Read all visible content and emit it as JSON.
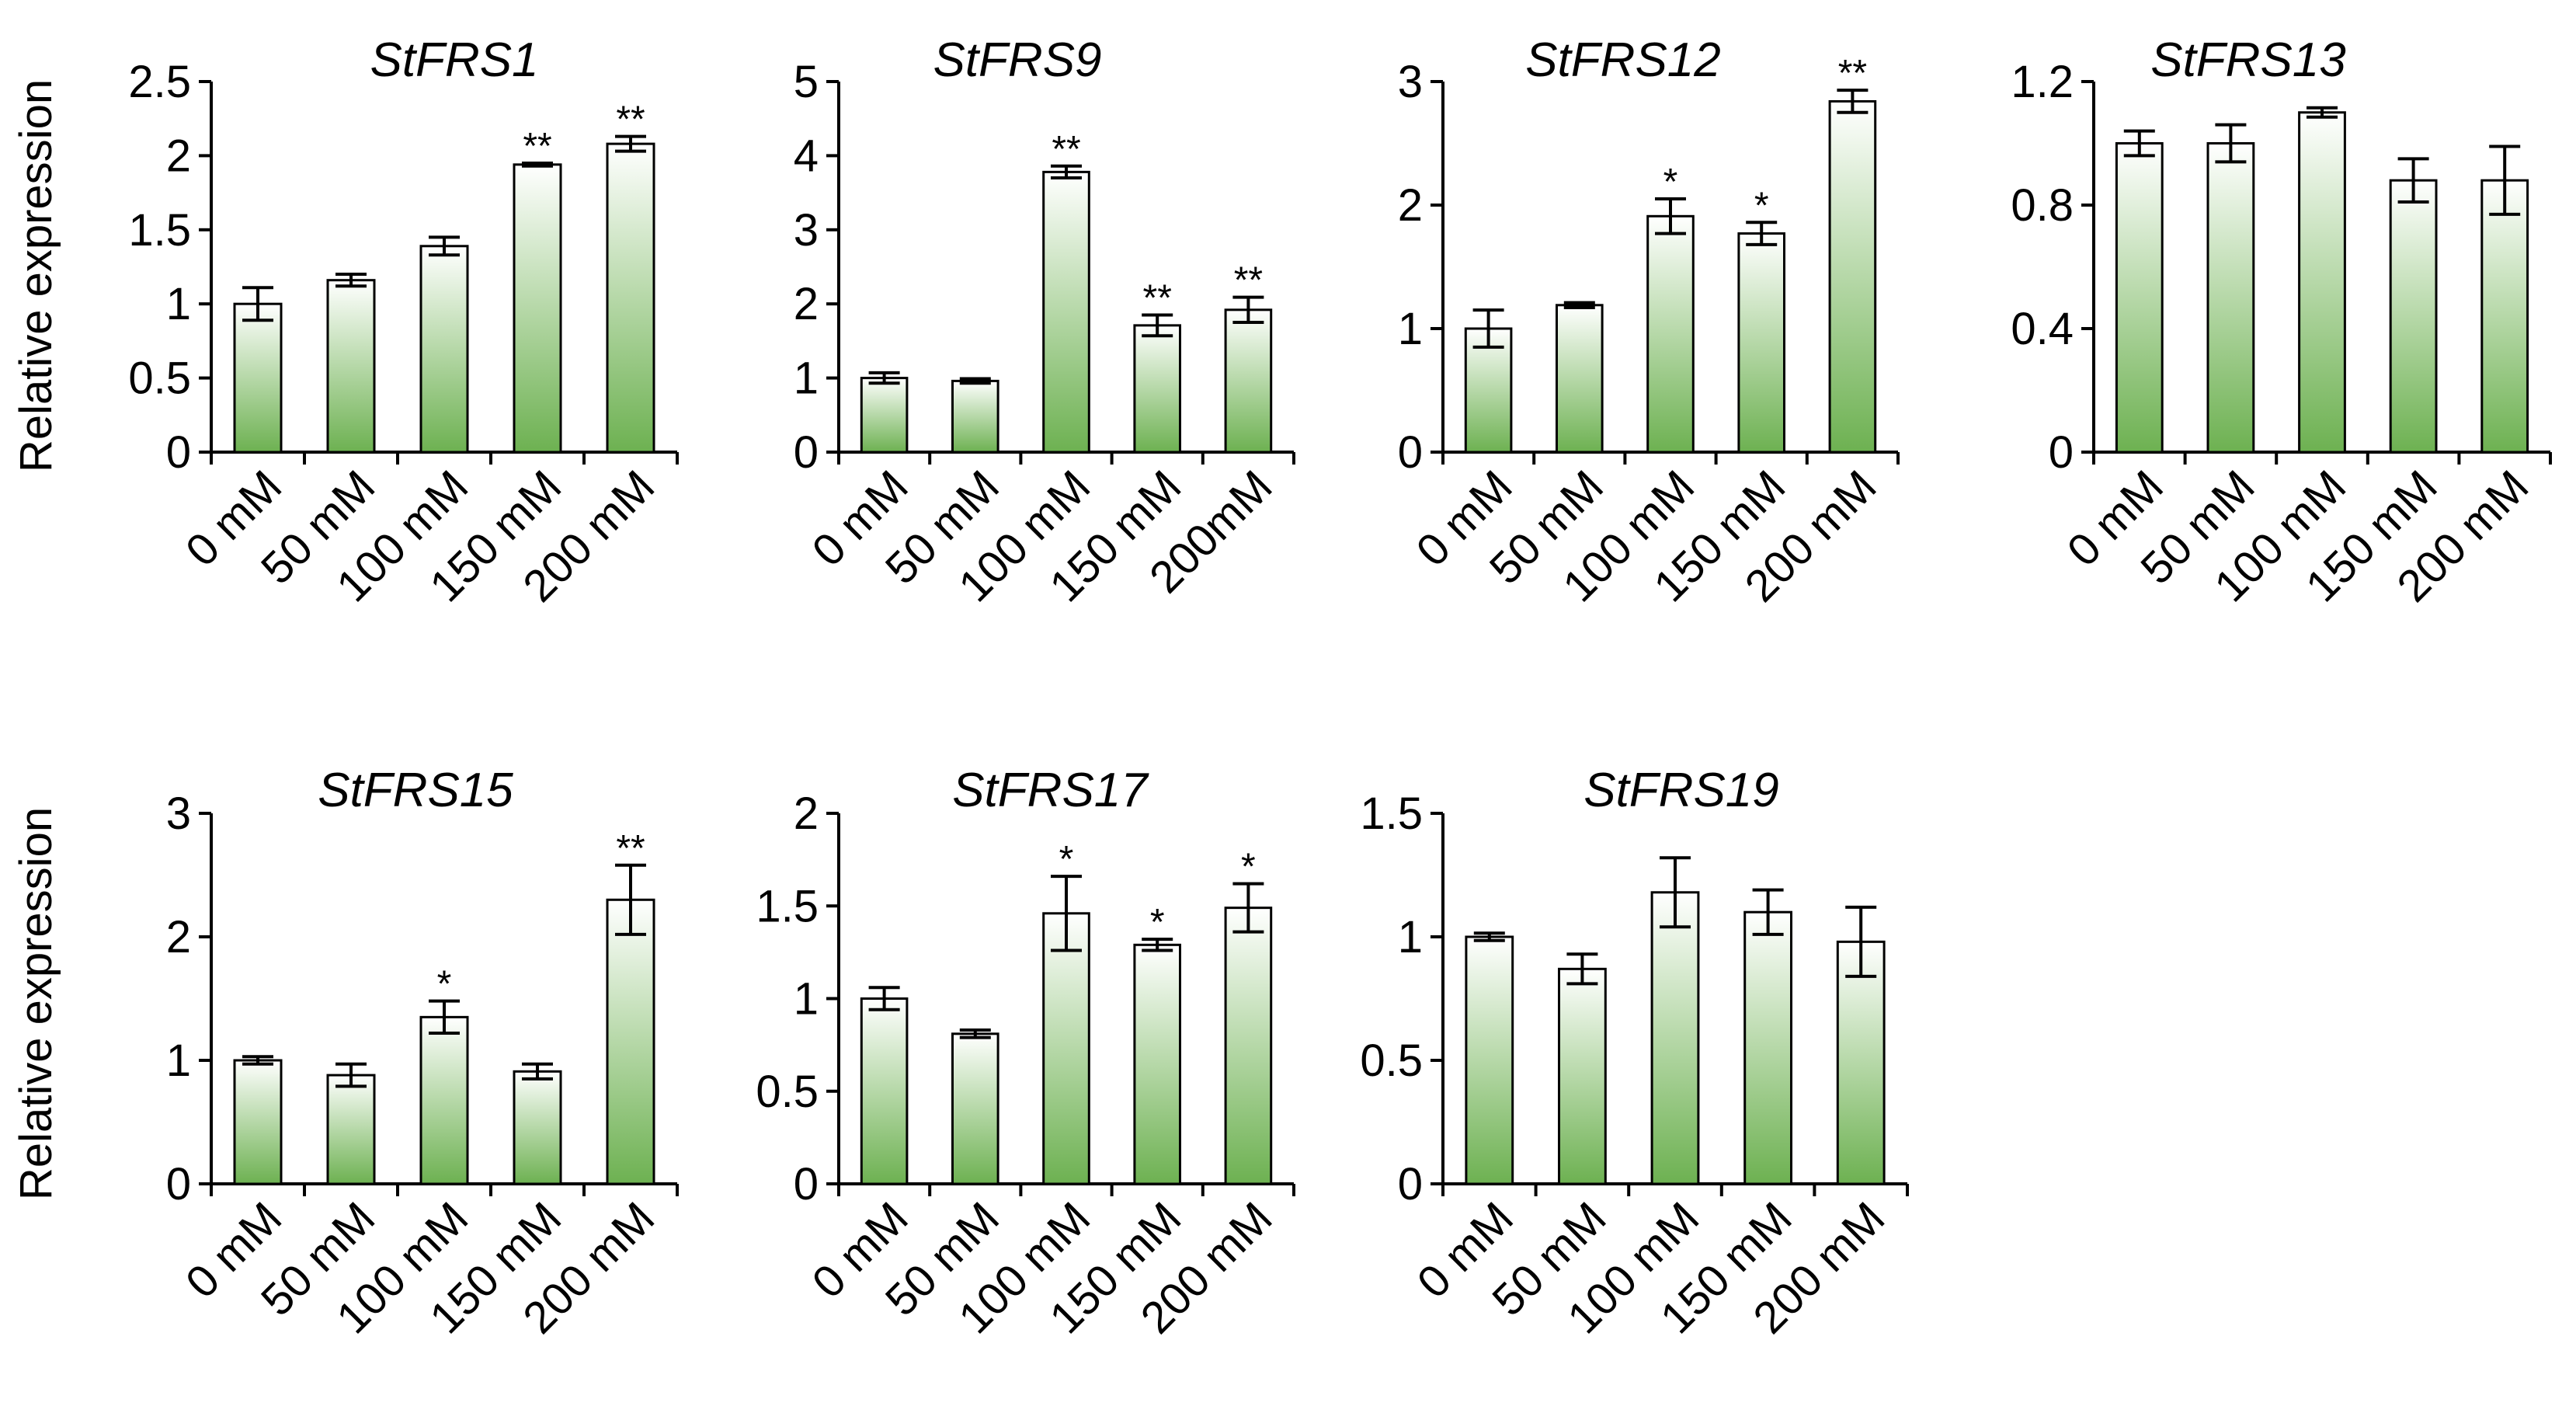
{
  "figure": {
    "ylabel": "Relative  expression",
    "bar_gradient": {
      "top": "#ffffff",
      "bottom": "#6db151"
    },
    "axis_color": "#000000"
  },
  "chart_data": [
    {
      "type": "bar",
      "title": "StFRS1",
      "categories": [
        "0 mM",
        "50 mM",
        "100 mM",
        "150 mM",
        "200 mM"
      ],
      "values": [
        1.0,
        1.16,
        1.39,
        1.94,
        2.08
      ],
      "errors": [
        0.11,
        0.04,
        0.06,
        0.01,
        0.05
      ],
      "significance": [
        "",
        "",
        "",
        "**",
        "**"
      ],
      "ylim": [
        0,
        2.5
      ],
      "yticks": [
        0,
        0.5,
        1,
        1.5,
        2,
        2.5
      ],
      "ytick_labels": [
        "0",
        "0.5",
        "1",
        "1.5",
        "2",
        "2.5"
      ],
      "ylabel": "Relative  expression"
    },
    {
      "type": "bar",
      "title": "StFRS9",
      "categories": [
        "0 mM",
        "50 mM",
        "100 mM",
        "150 mM",
        "200mM"
      ],
      "values": [
        1.0,
        0.96,
        3.78,
        1.71,
        1.92
      ],
      "errors": [
        0.07,
        0.03,
        0.08,
        0.14,
        0.17
      ],
      "significance": [
        "",
        "",
        "**",
        "**",
        "**"
      ],
      "ylim": [
        0,
        5
      ],
      "yticks": [
        0,
        1,
        2,
        3,
        4,
        5
      ],
      "ytick_labels": [
        "0",
        "1",
        "2",
        "3",
        "4",
        "5"
      ],
      "ylabel": ""
    },
    {
      "type": "bar",
      "title": "StFRS12",
      "categories": [
        "0 mM",
        "50 mM",
        "100 mM",
        "150 mM",
        "200 mM"
      ],
      "values": [
        1.0,
        1.19,
        1.91,
        1.77,
        2.84
      ],
      "errors": [
        0.15,
        0.02,
        0.14,
        0.09,
        0.09
      ],
      "significance": [
        "",
        "",
        "*",
        "*",
        "**"
      ],
      "ylim": [
        0,
        3
      ],
      "yticks": [
        0,
        1,
        2,
        3
      ],
      "ytick_labels": [
        "0",
        "1",
        "2",
        "3"
      ],
      "ylabel": ""
    },
    {
      "type": "bar",
      "title": "StFRS13",
      "categories": [
        "0 mM",
        "50 mM",
        "100 mM",
        "150 mM",
        "200 mM"
      ],
      "values": [
        1.0,
        1.0,
        1.1,
        0.88,
        0.88
      ],
      "errors": [
        0.04,
        0.06,
        0.015,
        0.07,
        0.11
      ],
      "significance": [
        "",
        "",
        "",
        "",
        ""
      ],
      "ylim": [
        0,
        1.2
      ],
      "yticks": [
        0,
        0.4,
        0.8,
        1.2
      ],
      "ytick_labels": [
        "0",
        "0.4",
        "0.8",
        "1.2"
      ],
      "ylabel": ""
    },
    {
      "type": "bar",
      "title": "StFRS15",
      "categories": [
        "0 mM",
        "50 mM",
        "100 mM",
        "150 mM",
        "200 mM"
      ],
      "values": [
        1.0,
        0.88,
        1.35,
        0.91,
        2.3
      ],
      "errors": [
        0.03,
        0.09,
        0.13,
        0.06,
        0.28
      ],
      "significance": [
        "",
        "",
        "*",
        "",
        "**"
      ],
      "ylim": [
        0,
        3
      ],
      "yticks": [
        0,
        1,
        2,
        3
      ],
      "ytick_labels": [
        "0",
        "1",
        "2",
        "3"
      ],
      "ylabel": "Relative  expression"
    },
    {
      "type": "bar",
      "title": "StFRS17",
      "categories": [
        "0 mM",
        "50 mM",
        "100 mM",
        "150 mM",
        "200 mM"
      ],
      "values": [
        1.0,
        0.81,
        1.46,
        1.29,
        1.49
      ],
      "errors": [
        0.06,
        0.02,
        0.2,
        0.03,
        0.13
      ],
      "significance": [
        "",
        "",
        "*",
        "*",
        "*"
      ],
      "ylim": [
        0,
        2
      ],
      "yticks": [
        0,
        0.5,
        1,
        1.5,
        2
      ],
      "ytick_labels": [
        "0",
        "0.5",
        "1",
        "1.5",
        "2"
      ],
      "ylabel": ""
    },
    {
      "type": "bar",
      "title": "StFRS19",
      "categories": [
        "0 mM",
        "50 mM",
        "100 mM",
        "150 mM",
        "200 mM"
      ],
      "values": [
        1.0,
        0.87,
        1.18,
        1.1,
        0.98
      ],
      "errors": [
        0.015,
        0.06,
        0.14,
        0.09,
        0.14
      ],
      "significance": [
        "",
        "",
        "",
        "",
        ""
      ],
      "ylim": [
        0,
        1.5
      ],
      "yticks": [
        0,
        0.5,
        1,
        1.5
      ],
      "ytick_labels": [
        "0",
        "0.5",
        "1",
        "1.5"
      ],
      "ylabel": ""
    }
  ]
}
